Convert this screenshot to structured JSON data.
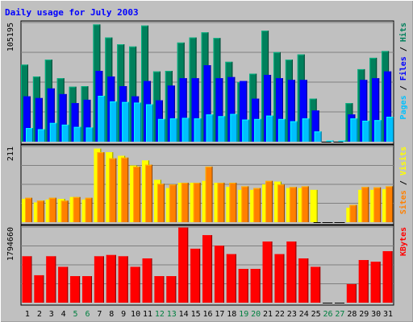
{
  "chart_data": {
    "type": "bar",
    "title": "Daily usage for July 2003",
    "colors": {
      "page_bg": "#C0C0C0",
      "panel_bg": "#C0C0C0",
      "title": "#0000FF",
      "hits": "#00805C",
      "files": "#0000FF",
      "pages": "#00C0FF",
      "visits": "#FFFF00",
      "sites": "#FF8000",
      "kbytes": "#FF0000",
      "weekday_label": "#000000",
      "weekend_label": "#008040"
    },
    "days": [
      "1",
      "2",
      "3",
      "4",
      "5",
      "6",
      "7",
      "8",
      "9",
      "10",
      "11",
      "12",
      "13",
      "14",
      "15",
      "16",
      "17",
      "18",
      "19",
      "20",
      "21",
      "22",
      "23",
      "24",
      "25",
      "26",
      "27",
      "28",
      "29",
      "30",
      "31"
    ],
    "weekend_days": [
      "5",
      "6",
      "12",
      "13",
      "19",
      "20",
      "26",
      "27"
    ],
    "panels": [
      {
        "id": "hits",
        "ytick_label": "105195",
        "ymax": 105195,
        "side_label_parts": [
          {
            "text": "Pages",
            "color": "#00C0FF"
          },
          {
            "text": " / ",
            "color": "#000000"
          },
          {
            "text": "Files",
            "color": "#0000FF"
          },
          {
            "text": " / ",
            "color": "#000000"
          },
          {
            "text": "Hits",
            "color": "#00805C"
          }
        ],
        "series": [
          {
            "name": "Hits",
            "color": "#00805C",
            "values": [
              68000,
              57500,
              72500,
              56000,
              48500,
              49000,
              103500,
              92000,
              86000,
              84000,
              102500,
              62000,
              62500,
              87500,
              92000,
              96500,
              91500,
              70500,
              52500,
              60000,
              98000,
              79000,
              72500,
              77000,
              38000,
              0,
              0,
              34000,
              64000,
              74000,
              80000
            ]
          },
          {
            "name": "Files",
            "color": "#0000FF",
            "values": [
              40000,
              38500,
              47000,
              42000,
              34000,
              37000,
              62500,
              57500,
              49000,
              40000,
              53500,
              36500,
              49500,
              56000,
              56000,
              67500,
              56000,
              57000,
              53500,
              38000,
              59000,
              56000,
              54500,
              54500,
              27500,
              0,
              0,
              24000,
              54500,
              56000,
              62000
            ]
          },
          {
            "name": "Pages",
            "color": "#00C0FF",
            "values": [
              12000,
              11000,
              16500,
              15000,
              13000,
              12500,
              40500,
              35500,
              35000,
              34500,
              33000,
              20000,
              20500,
              21000,
              20500,
              24000,
              22500,
              24500,
              19500,
              20000,
              23000,
              20000,
              18000,
              20500,
              9000,
              1000,
              1000,
              20500,
              18500,
              19000,
              22000
            ]
          }
        ]
      },
      {
        "id": "visits",
        "ytick_label": "211",
        "ymax": 211,
        "side_label_parts": [
          {
            "text": "Sites",
            "color": "#FF8000"
          },
          {
            "text": " / ",
            "color": "#000000"
          },
          {
            "text": "Visits",
            "color": "#FFFF00"
          }
        ],
        "series": [
          {
            "name": "Visits",
            "color": "#FFFF00",
            "values": [
              65,
              55,
              63,
              65,
              70,
              63,
              205,
              195,
              185,
              158,
              172,
              118,
              95,
              110,
              110,
              115,
              110,
              98,
              90,
              90,
              105,
              113,
              95,
              95,
              90,
              0,
              0,
              40,
              90,
              90,
              92
            ]
          },
          {
            "name": "Sites",
            "color": "#FF8000",
            "values": [
              68,
              60,
              68,
              60,
              70,
              68,
              195,
              178,
              180,
              155,
              160,
              107,
              105,
              110,
              110,
              155,
              110,
              110,
              100,
              95,
              115,
              105,
              98,
              100,
              0,
              0,
              0,
              48,
              98,
              97,
              100
            ]
          }
        ]
      },
      {
        "id": "kbytes",
        "ytick_label": "1794660",
        "ymax": 1794660,
        "side_label_parts": [
          {
            "text": "KBytes",
            "color": "#FF0000"
          }
        ],
        "series": [
          {
            "name": "KBytes",
            "color": "#FF0000",
            "values": [
              1100000,
              650000,
              1100000,
              850000,
              630000,
              630000,
              1100000,
              1130000,
              1100000,
              850000,
              1050000,
              630000,
              630000,
              1780000,
              1280000,
              1600000,
              1350000,
              1150000,
              800000,
              800000,
              1450000,
              1150000,
              1450000,
              1050000,
              850000,
              0,
              0,
              440000,
              1010000,
              970000,
              1220000
            ]
          }
        ]
      }
    ]
  }
}
